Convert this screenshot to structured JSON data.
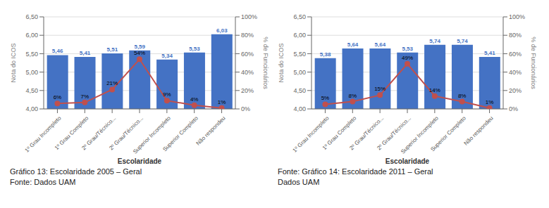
{
  "chart_data": [
    {
      "type": "bar",
      "categories": [
        "1º Grau Incompleto",
        "1º Grau Completo",
        "2º Grau/Técnico...",
        "2º Grau/Técnico...",
        "Superior Incompleto",
        "Superior Completo",
        "Não respondeu"
      ],
      "series": [
        {
          "type": "bar",
          "color": "#4472C4",
          "values": [
            5.46,
            5.41,
            5.51,
            5.59,
            5.34,
            5.53,
            6.03
          ],
          "value_labels": [
            "5,46",
            "5,41",
            "5,51",
            "5,59",
            "5,34",
            "5,53",
            "6,03"
          ]
        },
        {
          "type": "line",
          "axis": "y2",
          "color": "#C0504D",
          "marker": "circle",
          "values": [
            6,
            7,
            21,
            54,
            9,
            4,
            1
          ],
          "value_labels": [
            "6%",
            "7%",
            "21%",
            "54%",
            "9%",
            "4%",
            "1%"
          ]
        }
      ],
      "xlabel": "Escolaridade",
      "ylabel": "Nota do ICOS",
      "y2label": "% de Funcionários",
      "ylim": [
        4.0,
        6.5
      ],
      "yticks": [
        {
          "value": 4.0,
          "label": "4,00"
        },
        {
          "value": 4.5,
          "label": "4,50"
        },
        {
          "value": 5.0,
          "label": "5,00"
        },
        {
          "value": 5.5,
          "label": "5,50"
        },
        {
          "value": 6.0,
          "label": "6,00"
        },
        {
          "value": 6.5,
          "label": "6,50"
        }
      ],
      "y2lim": [
        0,
        100
      ],
      "y2ticks": [
        {
          "value": 0,
          "label": "0%"
        },
        {
          "value": 20,
          "label": "20%"
        },
        {
          "value": 40,
          "label": "40%"
        },
        {
          "value": 60,
          "label": "60%"
        },
        {
          "value": 80,
          "label": "80%"
        },
        {
          "value": 100,
          "label": "100%"
        }
      ],
      "grid": true,
      "data_labels": true,
      "annotations": [
        "Gráfico 13: Escolaridade 2005 – Geral",
        "Fonte: Dados UAM"
      ]
    },
    {
      "type": "bar",
      "categories": [
        "1º Grau Incompleto",
        "1º Grau Completo",
        "2º Grau/Técnico...",
        "2º Grau/Técnico...",
        "Superior Incompleto",
        "Superior Completo",
        "Não respondeu"
      ],
      "series": [
        {
          "type": "bar",
          "color": "#4472C4",
          "values": [
            5.38,
            5.64,
            5.64,
            5.53,
            5.74,
            5.74,
            5.41
          ],
          "value_labels": [
            "5,38",
            "5,64",
            "5,64",
            "5,53",
            "5,74",
            "5,74",
            "5,41"
          ]
        },
        {
          "type": "line",
          "axis": "y2",
          "color": "#C0504D",
          "marker": "circle",
          "values": [
            5,
            8,
            15,
            49,
            14,
            8,
            1
          ],
          "value_labels": [
            "5%",
            "8%",
            "15%",
            "49%",
            "14%",
            "8%",
            "1%"
          ]
        }
      ],
      "xlabel": "Escolaridade",
      "ylabel": "Nota do ICOS",
      "y2label": "% de Funcionários",
      "ylim": [
        4.0,
        6.5
      ],
      "yticks": [
        {
          "value": 4.0,
          "label": "4,00"
        },
        {
          "value": 4.5,
          "label": "4,50"
        },
        {
          "value": 5.0,
          "label": "5,00"
        },
        {
          "value": 5.5,
          "label": "5,50"
        },
        {
          "value": 6.0,
          "label": "6,00"
        },
        {
          "value": 6.5,
          "label": "6,50"
        }
      ],
      "y2lim": [
        0,
        100
      ],
      "y2ticks": [
        {
          "value": 0,
          "label": "0%"
        },
        {
          "value": 20,
          "label": "20%"
        },
        {
          "value": 40,
          "label": "40%"
        },
        {
          "value": 60,
          "label": "60%"
        },
        {
          "value": 80,
          "label": "80%"
        },
        {
          "value": 100,
          "label": "100%"
        }
      ],
      "grid": true,
      "data_labels": true,
      "annotations": [
        "Fonte: Gráfico 14: Escolaridade 2011 – Geral",
        "Dados UAM"
      ]
    }
  ]
}
